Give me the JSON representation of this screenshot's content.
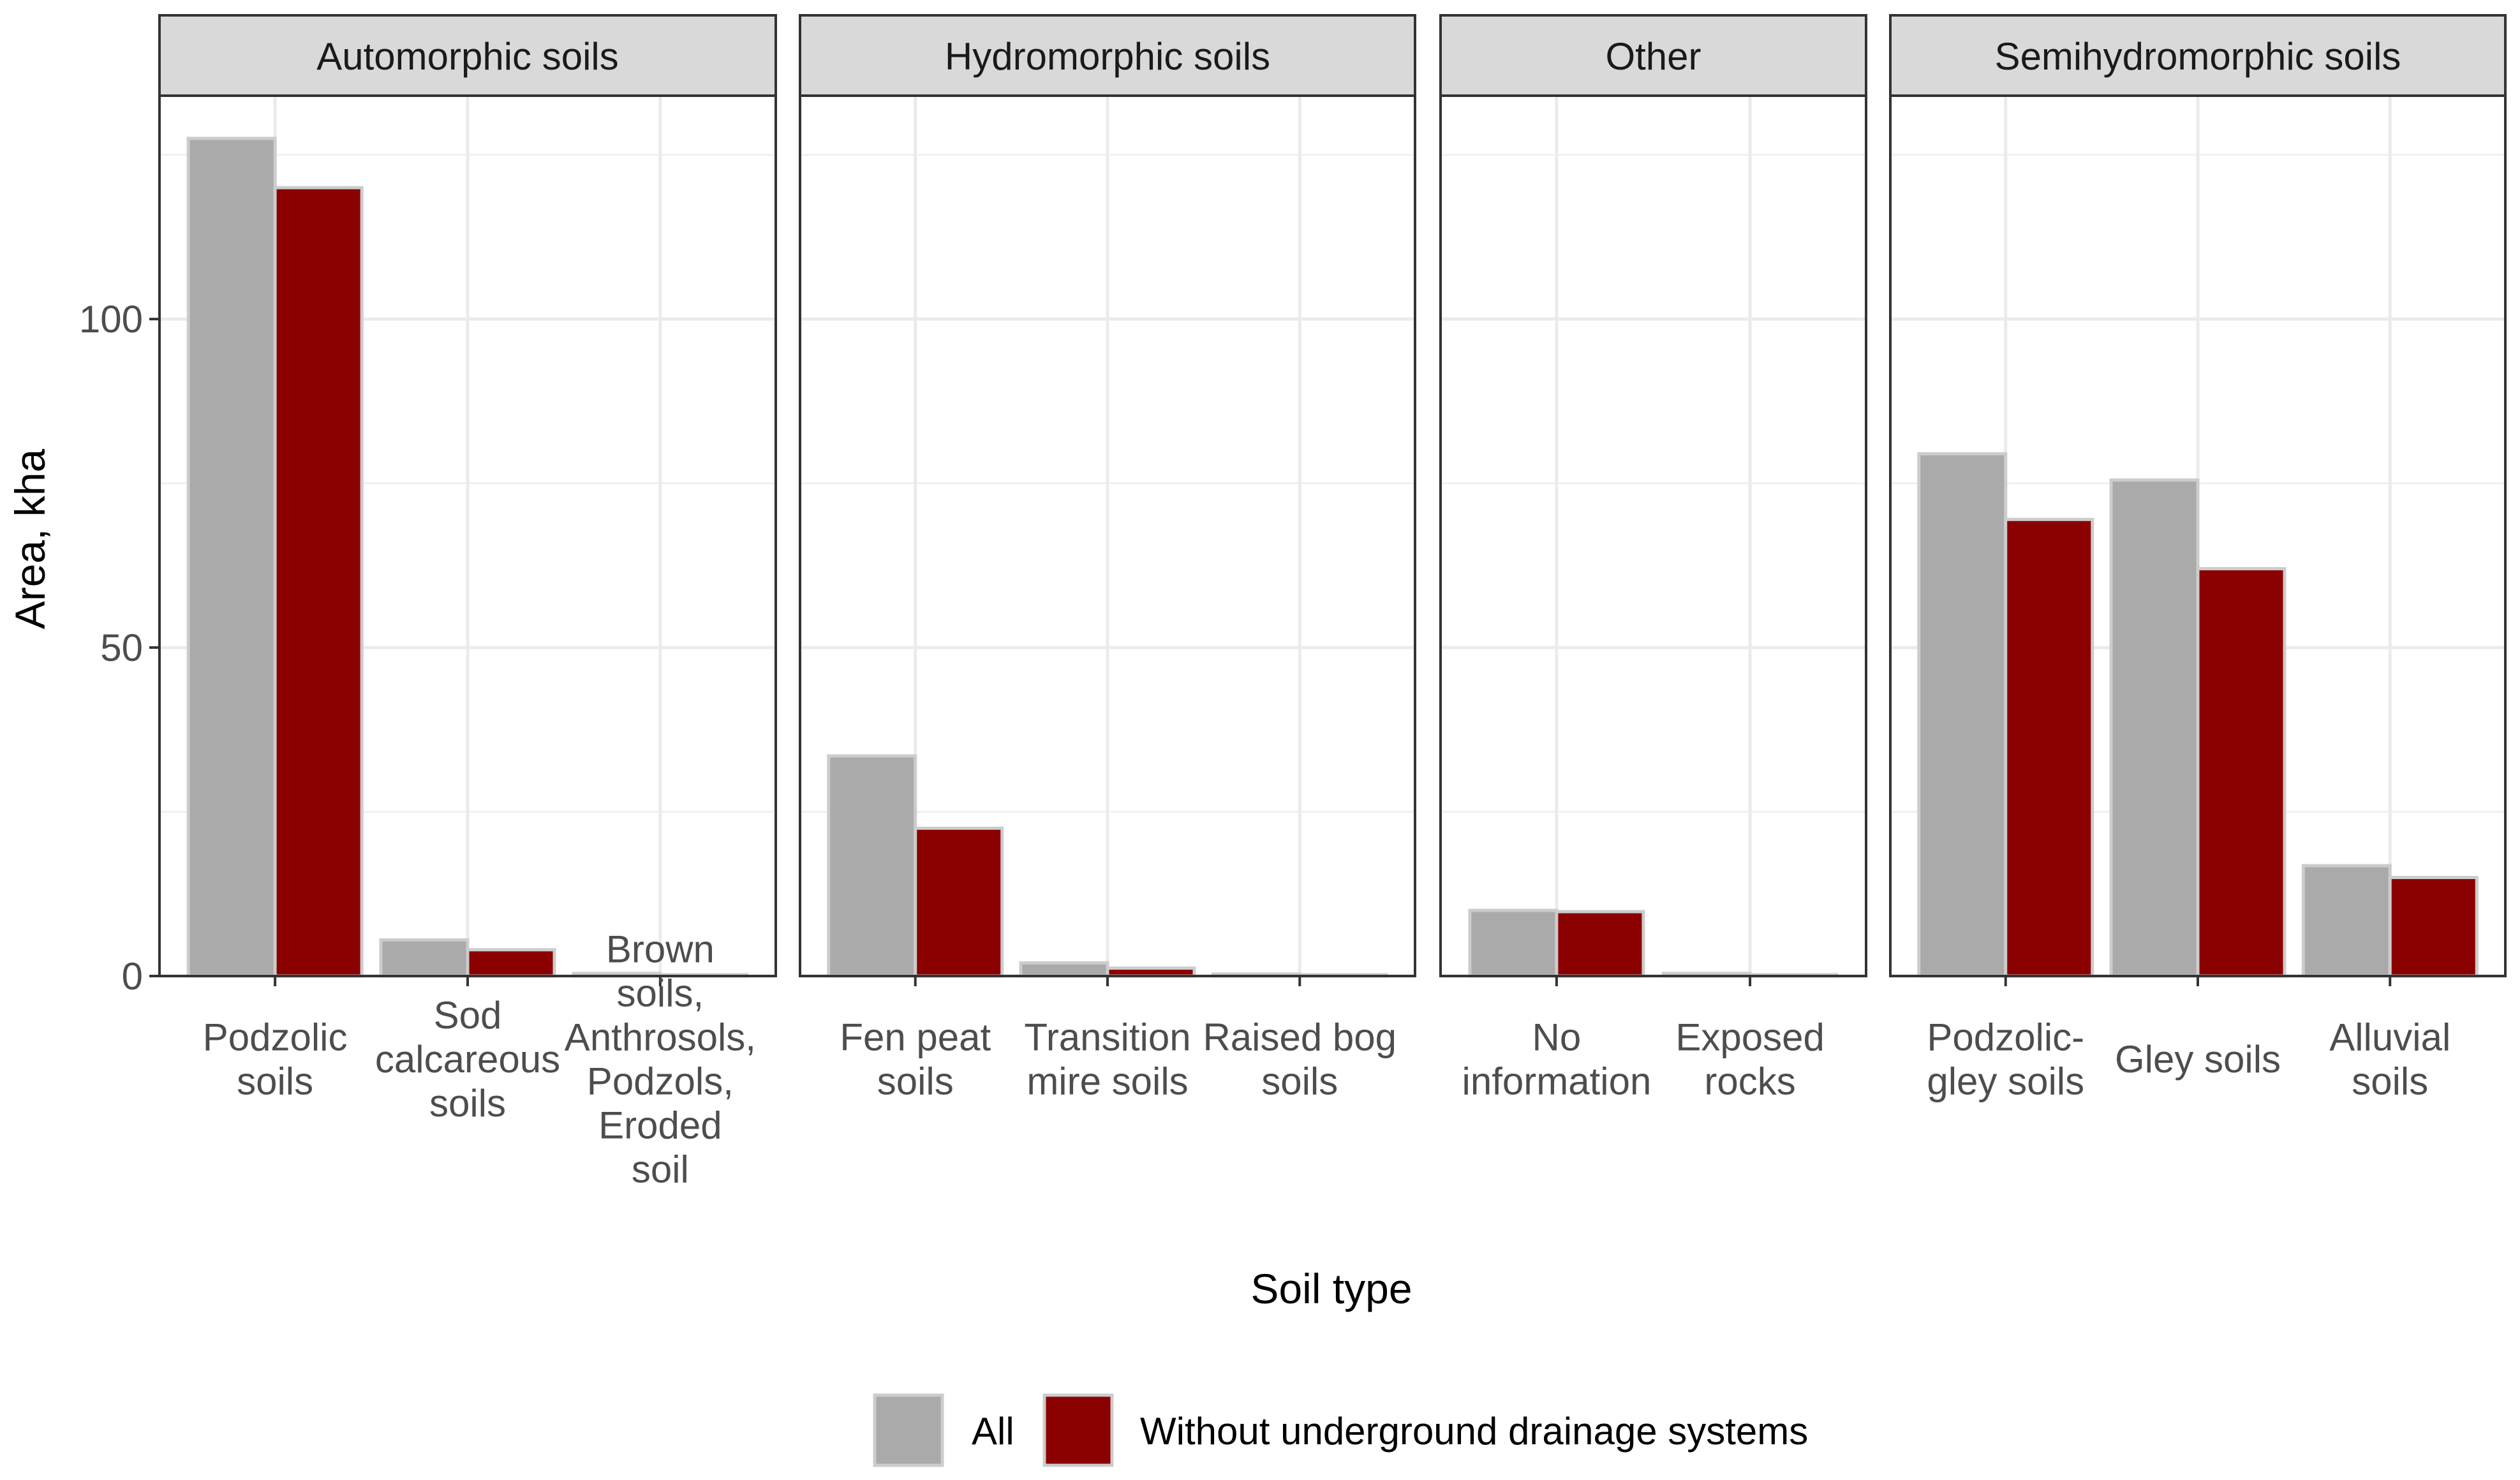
{
  "chart_data": {
    "type": "bar",
    "ylabel": "Area, kha",
    "xlabel": "Soil type",
    "ylim": [
      0,
      134
    ],
    "yticks": [
      0,
      50,
      100
    ],
    "series": [
      {
        "name": "All",
        "color": "#aaaaaa"
      },
      {
        "name": "Without underground drainage systems",
        "color": "#8b0000"
      }
    ],
    "facets": [
      {
        "title": "Automorphic soils",
        "categories": [
          {
            "label": [
              "Podzolic",
              "soils"
            ],
            "values": [
              127.5,
              120
            ]
          },
          {
            "label": [
              "Sod",
              "calcareous",
              "soils"
            ],
            "values": [
              5.5,
              4
            ]
          },
          {
            "label": [
              "Brown",
              "soils,",
              "Anthrosols,",
              "Podzols,",
              "Eroded",
              "soil"
            ],
            "values": [
              0.4,
              0.2
            ]
          }
        ]
      },
      {
        "title": "Hydromorphic soils",
        "categories": [
          {
            "label": [
              "Fen peat",
              "soils"
            ],
            "values": [
              33.5,
              22.5
            ]
          },
          {
            "label": [
              "Transition",
              "mire soils"
            ],
            "values": [
              2,
              1.2
            ]
          },
          {
            "label": [
              "Raised bog",
              "soils"
            ],
            "values": [
              0.3,
              0.2
            ]
          }
        ]
      },
      {
        "title": "Other",
        "categories": [
          {
            "label": [
              "No",
              "information"
            ],
            "values": [
              10,
              9.8
            ]
          },
          {
            "label": [
              "Exposed",
              "rocks"
            ],
            "values": [
              0.4,
              0.2
            ]
          }
        ]
      },
      {
        "title": "Semihydromorphic soils",
        "categories": [
          {
            "label": [
              "Podzolic-",
              "gley soils"
            ],
            "values": [
              79.5,
              69.5
            ]
          },
          {
            "label": [
              "Gley soils"
            ],
            "values": [
              75.5,
              62
            ]
          },
          {
            "label": [
              "Alluvial",
              "soils"
            ],
            "values": [
              16.8,
              15
            ]
          }
        ]
      }
    ],
    "legend_position": "bottom"
  }
}
